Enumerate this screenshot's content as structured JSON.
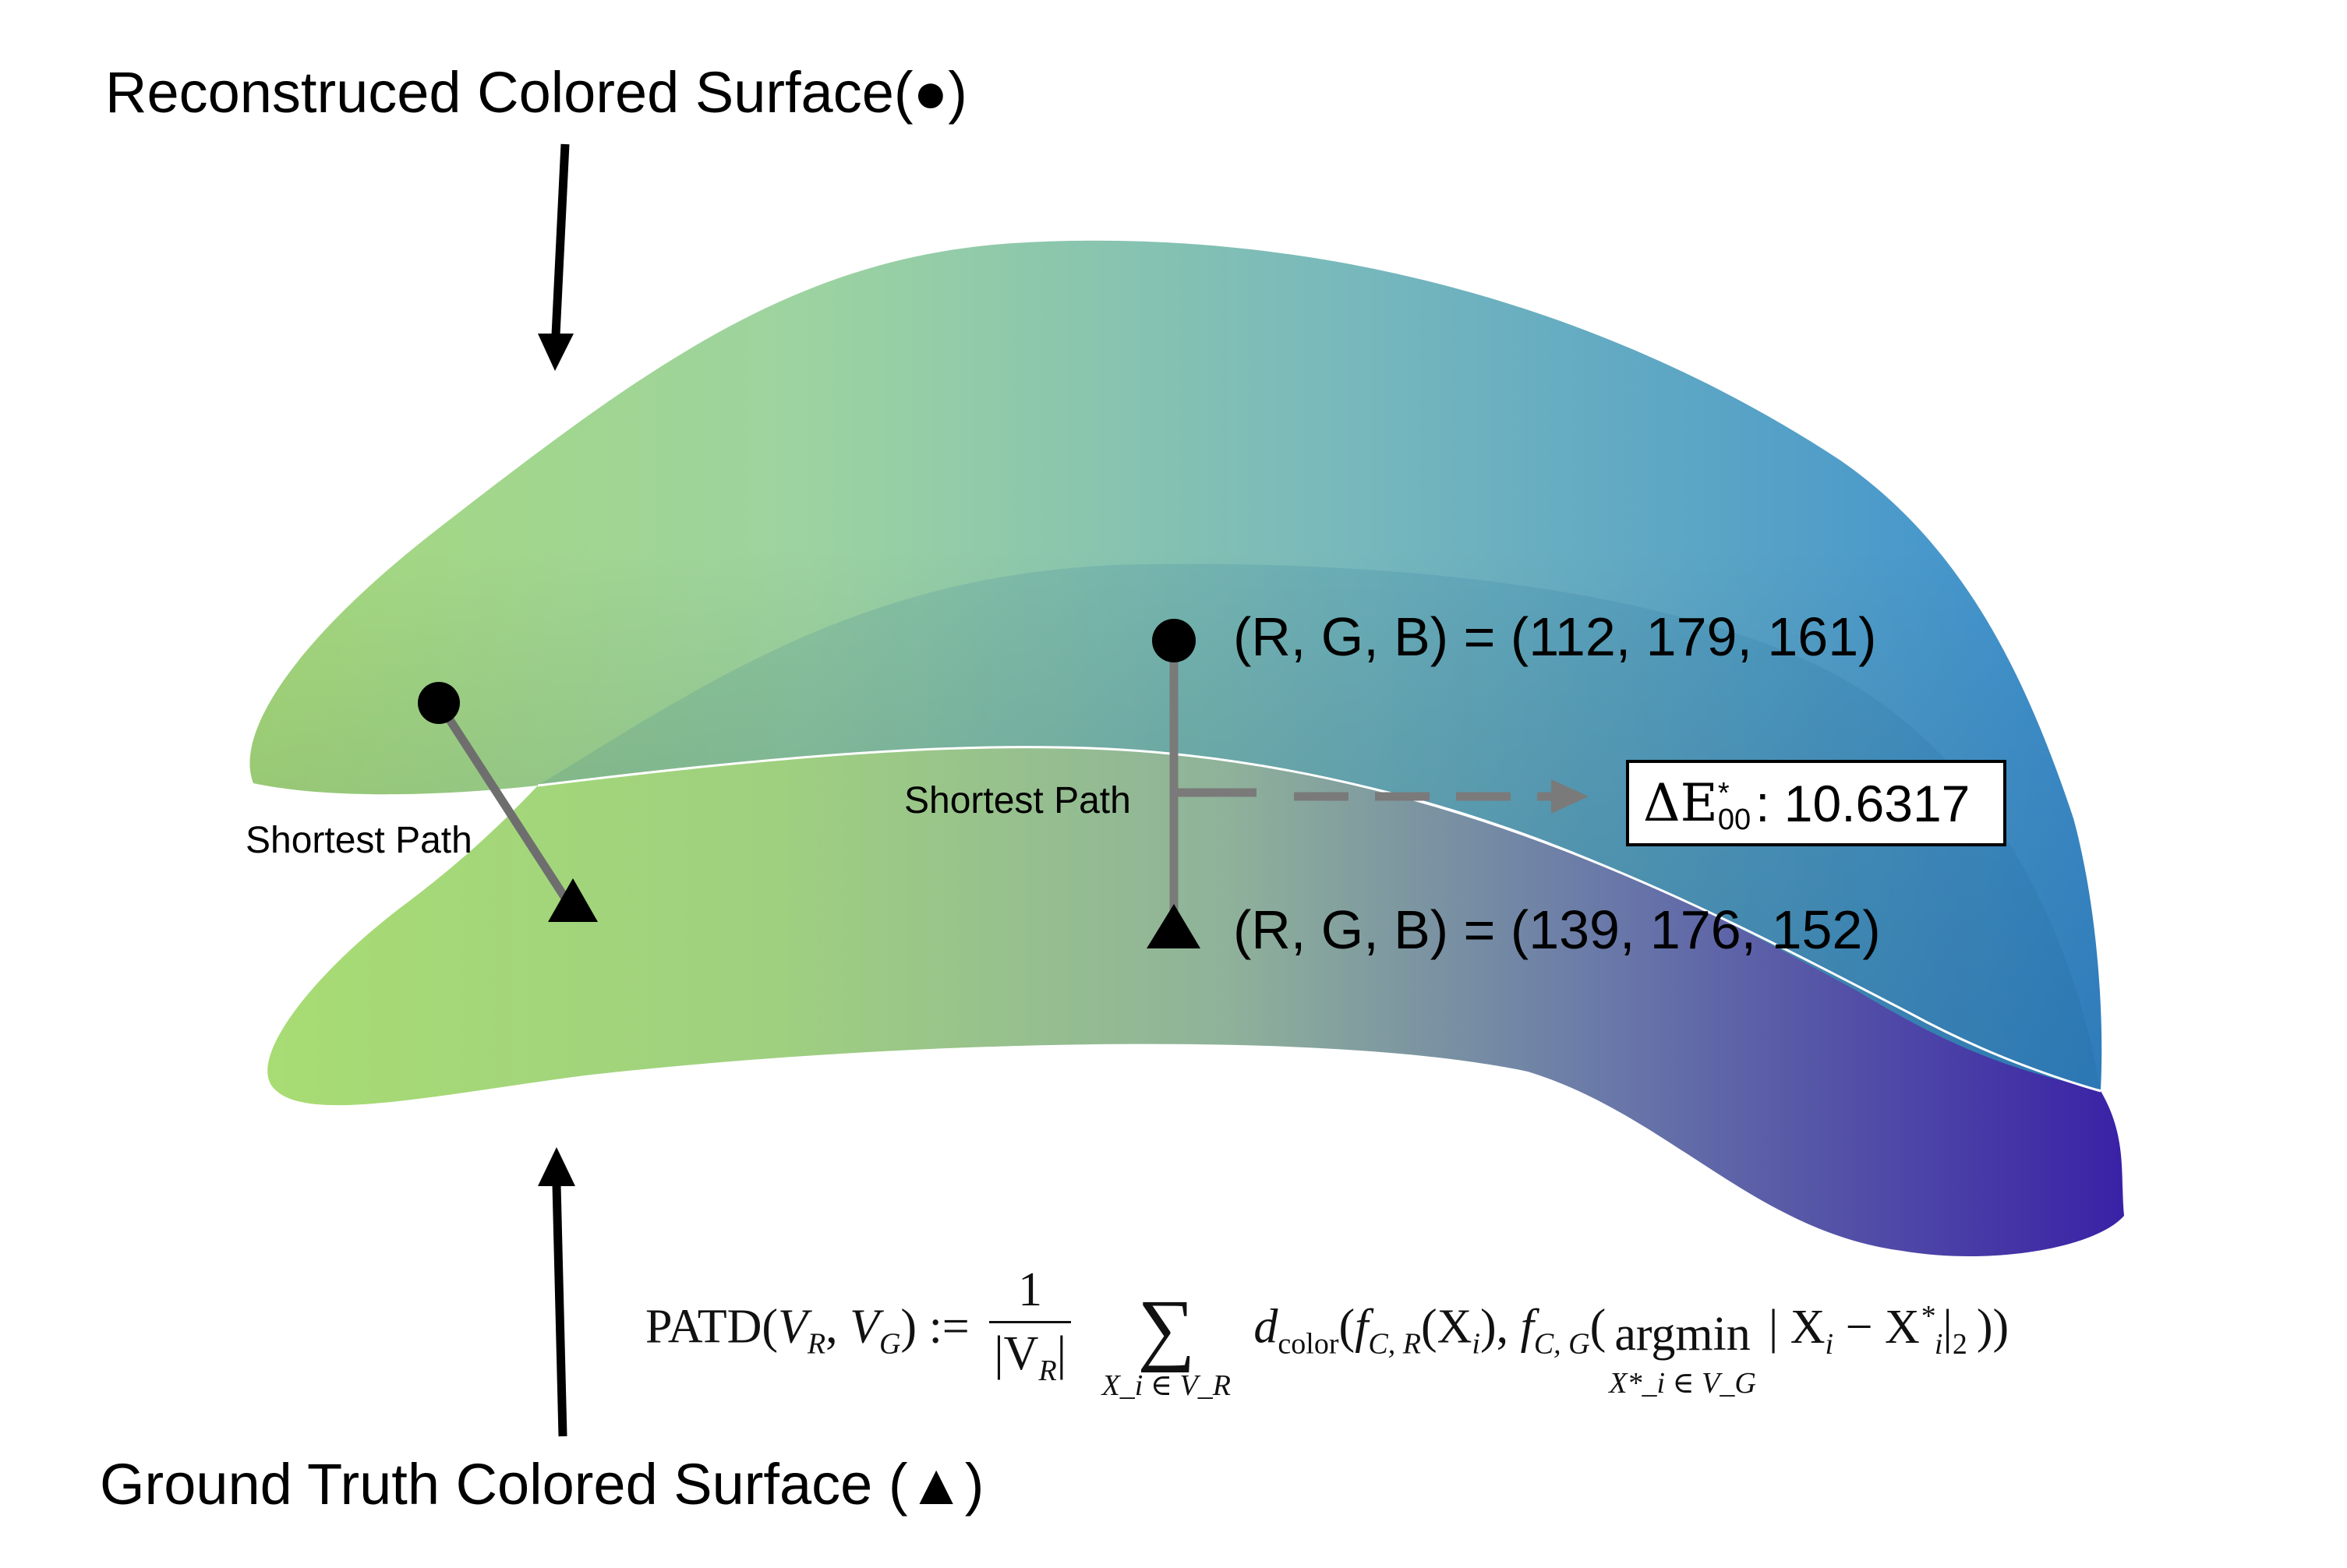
{
  "labels": {
    "reconstructed_surface": "Reconstruced Colored Surface(●)",
    "ground_truth_surface": "Ground Truth Colored Surface (▲)",
    "shortest_path": "Shortest Path",
    "rgb_reconstructed": "(R, G, B) = (112, 179, 161)",
    "rgb_ground_truth": "(R, G, B) = (139, 176, 152)"
  },
  "delta": {
    "symbol": "ΔE",
    "superscript": "*",
    "subscript": "00",
    "value": ": 10.6317"
  },
  "formula": {
    "lhs": "PATD(",
    "v_r": "V",
    "r_sub": "R",
    "comma": ", ",
    "v_g": "V",
    "g_sub": "G",
    "assign": ") :=",
    "frac_num": "1",
    "frac_den": "|V",
    "frac_den_sub": "R",
    "frac_den_close": "|",
    "sum_symbol": "∑",
    "sum_under": "X_i ∈ V_R",
    "d": "d",
    "d_sub": "color",
    "open": "(",
    "f1": "f",
    "f1_sub": "C, R",
    "x_i": "(X",
    "i_sub": "i",
    "close1": "), ",
    "f2": "f",
    "f2_sub": "C, G",
    "argmin_open": "(",
    "argmin": "argmin",
    "argmin_under": "X*_i ∈ V_G",
    "norm_expr": "| X",
    "minus": " − X",
    "star": "*",
    "norm_close": "|",
    "norm_sub": "2",
    "end": "))"
  },
  "colors": {
    "green": "#a8d67a",
    "teal": "#6fb3a3",
    "blue": "#2f86cc",
    "purple": "#3f2aa0",
    "path_gray": "#7a7a7a"
  },
  "icons": {
    "marker_reconstructed": "filled-circle",
    "marker_ground_truth": "filled-triangle",
    "arrow": "arrow"
  }
}
